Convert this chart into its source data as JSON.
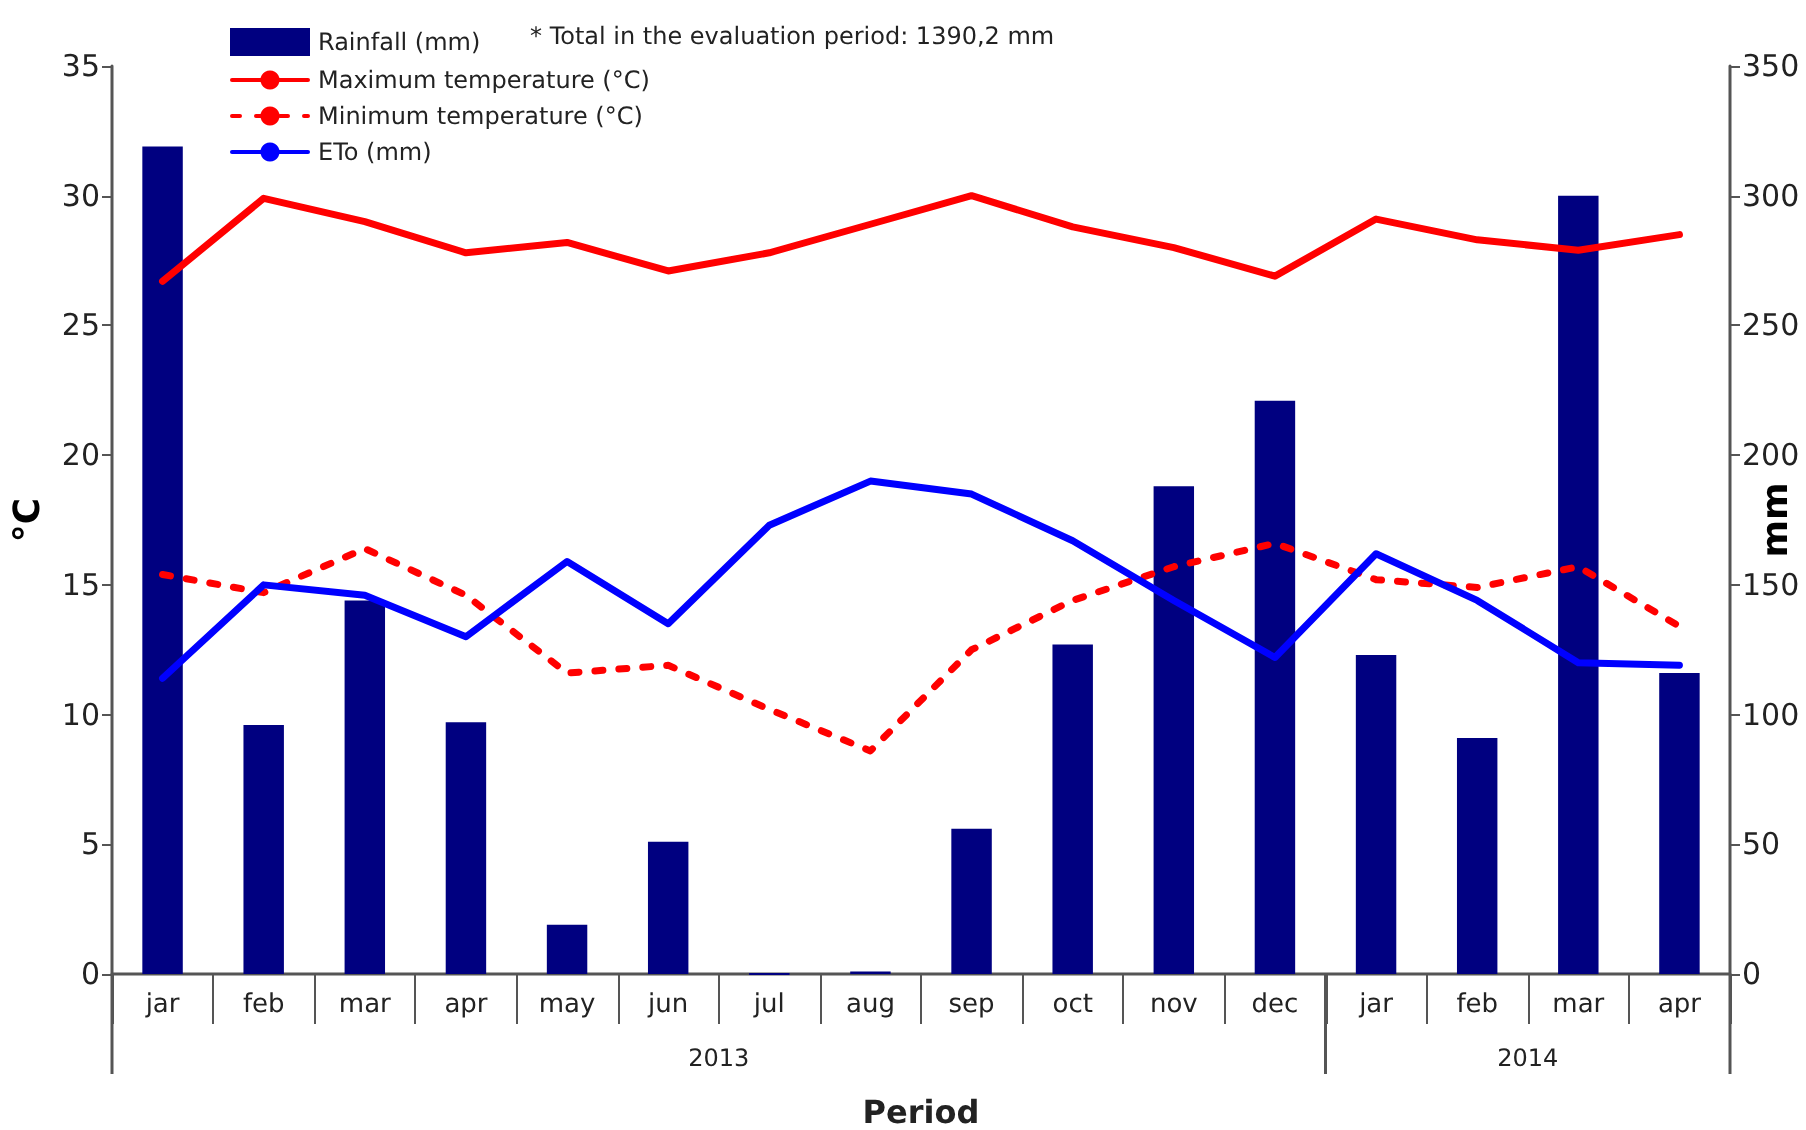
{
  "chart_data": {
    "type": "bar",
    "xlabel": "Period",
    "ylabel": "°C",
    "y2label": "mm",
    "categories": [
      "jar",
      "feb",
      "mar",
      "apr",
      "may",
      "jun",
      "jul",
      "aug",
      "sep",
      "oct",
      "nov",
      "dec",
      "jar",
      "feb",
      "mar",
      "apr"
    ],
    "series": [
      {
        "name": "Rainfall (mm)",
        "axis": "y2",
        "color": "#000080",
        "values": [
          319,
          96,
          144,
          97,
          19,
          51,
          0,
          1,
          56,
          127,
          188,
          221,
          123,
          91,
          300,
          116
        ]
      },
      {
        "name": "Maximum temperature (°C)",
        "type": "line",
        "color": "#ff0000",
        "line_style": "solid",
        "values": [
          26.7,
          29.9,
          29.0,
          27.8,
          28.2,
          27.1,
          27.8,
          28.9,
          30.0,
          28.8,
          28.0,
          26.9,
          29.1,
          28.3,
          27.9,
          28.5
        ]
      },
      {
        "name": "Minimum temperature (°C)",
        "type": "line",
        "color": "#ff0000",
        "line_style": "dashed",
        "values": [
          15.4,
          14.7,
          16.4,
          14.6,
          11.6,
          11.9,
          10.2,
          8.6,
          12.5,
          14.4,
          15.7,
          16.6,
          15.2,
          14.9,
          15.7,
          13.4
        ]
      },
      {
        "name": "ETo (mm)",
        "type": "line",
        "axis": "y2",
        "color": "#0000ff",
        "line_style": "solid",
        "values": [
          114,
          150,
          146,
          130,
          159,
          135,
          173,
          190,
          185,
          167,
          144,
          122,
          162,
          144,
          120,
          119
        ]
      }
    ],
    "ylim": [
      0,
      35
    ],
    "yticks": [
      0,
      5,
      10,
      15,
      20,
      25,
      30,
      35
    ],
    "y2lim": [
      0,
      350
    ],
    "y2ticks": [
      0,
      50,
      100,
      150,
      200,
      250,
      300,
      350
    ],
    "annotations": [
      "* Total in the evaluation period: 1390,2 mm",
      "2013",
      "2014"
    ],
    "legend": "top left",
    "grid": false,
    "marker": "none"
  }
}
